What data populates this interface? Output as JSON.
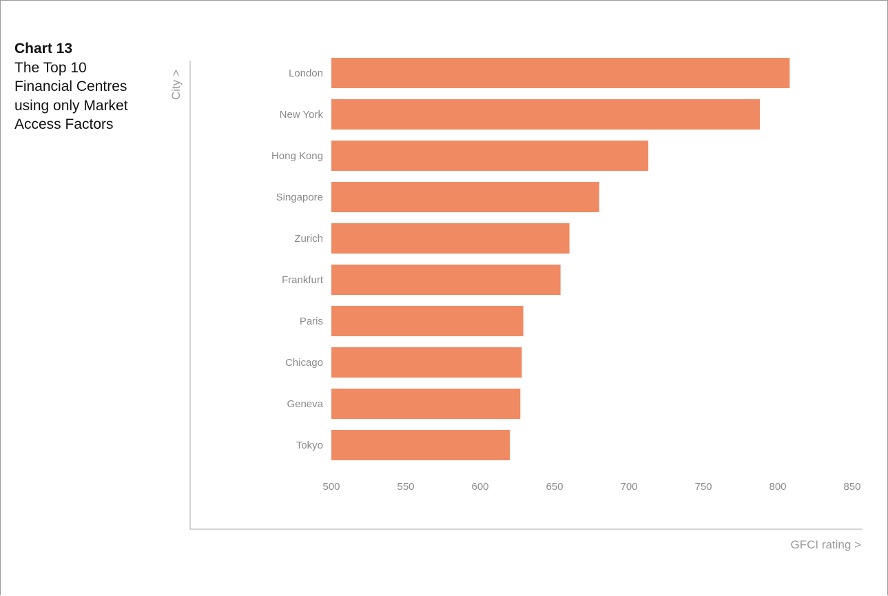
{
  "caption": {
    "chart_number": "Chart 13",
    "description": "The Top 10 Financial Centres using only Market Access Factors"
  },
  "colors": {
    "bar": "#ef8a62",
    "label": "#8a8a8a",
    "axis": "#9a9a9a"
  },
  "chart_data": {
    "type": "bar",
    "orientation": "horizontal",
    "title": "",
    "xlabel": "GFCI rating >",
    "ylabel": "City >",
    "categories": [
      "London",
      "New York",
      "Hong Kong",
      "Singapore",
      "Zurich",
      "Frankfurt",
      "Paris",
      "Chicago",
      "Geneva",
      "Tokyo"
    ],
    "values": [
      808,
      788,
      713,
      680,
      660,
      654,
      629,
      628,
      627,
      620
    ],
    "xlim": [
      500,
      850
    ],
    "xticks": [
      500,
      550,
      600,
      650,
      700,
      750,
      800,
      850
    ],
    "grid": false,
    "legend": "none"
  }
}
